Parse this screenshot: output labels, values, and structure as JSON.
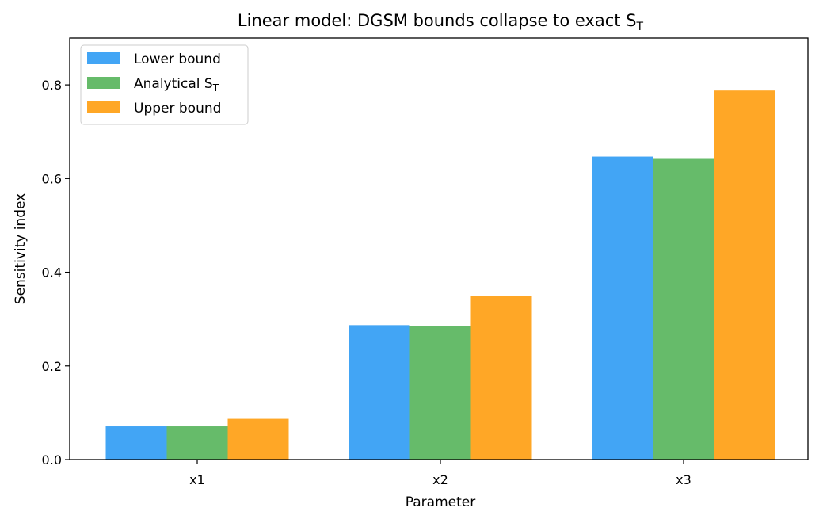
{
  "chart_data": {
    "type": "bar",
    "title": "Linear model: DGSM bounds collapse to exact S",
    "title_subscript": "T",
    "xlabel": "Parameter",
    "ylabel": "Sensitivity index",
    "categories": [
      "x1",
      "x2",
      "x3"
    ],
    "ylim": [
      0,
      0.9
    ],
    "yticks": [
      0.0,
      0.2,
      0.4,
      0.6,
      0.8
    ],
    "ytick_labels": [
      "0.0",
      "0.2",
      "0.4",
      "0.6",
      "0.8"
    ],
    "grid": false,
    "legend_position": "top-left",
    "series": [
      {
        "name": "Lower bound",
        "name_subscript": "",
        "color": "#42a5f5",
        "values": [
          0.071,
          0.287,
          0.647
        ]
      },
      {
        "name": "Analytical S",
        "name_subscript": "T",
        "color": "#66bb6a",
        "values": [
          0.071,
          0.285,
          0.642
        ]
      },
      {
        "name": "Upper bound",
        "name_subscript": "",
        "color": "#ffa726",
        "values": [
          0.087,
          0.35,
          0.788
        ]
      }
    ]
  }
}
